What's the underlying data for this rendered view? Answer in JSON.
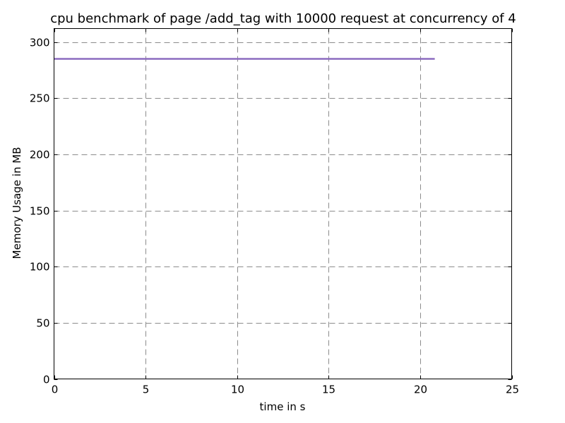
{
  "chart_data": {
    "type": "line",
    "title": "cpu benchmark of page /add_tag with 10000 request at concurrency of 4",
    "xlabel": "time in s",
    "ylabel": "Memory Usage in MB",
    "xlim": [
      0,
      25
    ],
    "ylim": [
      0,
      312
    ],
    "xticks": [
      0,
      5,
      10,
      15,
      20,
      25
    ],
    "yticks": [
      0,
      50,
      100,
      150,
      200,
      250,
      300
    ],
    "grid": true,
    "series": [
      {
        "color": "#8c6bbf",
        "x": [
          0,
          20.8
        ],
        "y": [
          285,
          285
        ]
      }
    ]
  }
}
